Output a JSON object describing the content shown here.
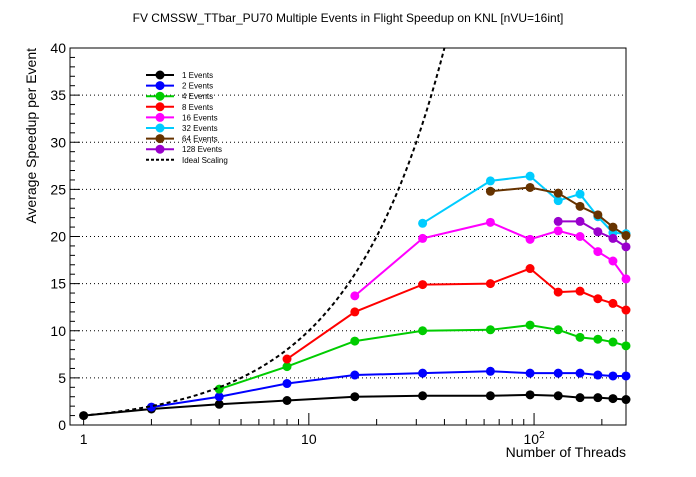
{
  "chart_data": {
    "type": "line",
    "title": "FV CMSSW_TTbar_PU70 Multiple Events in Flight Speedup on KNL [nVU=16int]",
    "xlabel": "Number of Threads",
    "ylabel": "Average Speedup per Event",
    "xscale": "log",
    "xlim": [
      0.87,
      256
    ],
    "ylim": [
      0,
      40
    ],
    "x_tick_labels": [
      {
        "value": 1,
        "label": "1",
        "sup": ""
      },
      {
        "value": 10,
        "label": "10",
        "sup": ""
      },
      {
        "value": 100,
        "label": "10",
        "sup": "2"
      }
    ],
    "y_ticks": [
      0,
      5,
      10,
      15,
      20,
      25,
      30,
      35,
      40
    ],
    "grid": "horizontal dotted",
    "legend_position": "top-left",
    "series": [
      {
        "name": "1 Events",
        "color": "#000000",
        "style": "solid-markers",
        "x": [
          1,
          2,
          4,
          8,
          16,
          32,
          64,
          96,
          128,
          160,
          192,
          224,
          256
        ],
        "y": [
          1.0,
          1.7,
          2.2,
          2.6,
          3.0,
          3.1,
          3.1,
          3.2,
          3.1,
          2.9,
          2.9,
          2.8,
          2.7
        ]
      },
      {
        "name": "2 Events",
        "color": "#0000ff",
        "style": "solid-markers",
        "x": [
          2,
          4,
          8,
          16,
          32,
          64,
          96,
          128,
          160,
          192,
          224,
          256
        ],
        "y": [
          1.9,
          3.0,
          4.4,
          5.3,
          5.5,
          5.7,
          5.5,
          5.5,
          5.5,
          5.3,
          5.2,
          5.2
        ]
      },
      {
        "name": "4 Events",
        "color": "#00cc00",
        "style": "solid-markers",
        "x": [
          4,
          8,
          16,
          32,
          64,
          96,
          128,
          160,
          192,
          224,
          256
        ],
        "y": [
          3.8,
          6.2,
          8.9,
          10.0,
          10.1,
          10.6,
          10.1,
          9.3,
          9.1,
          8.8,
          8.4
        ]
      },
      {
        "name": "8 Events",
        "color": "#ff0000",
        "style": "solid-markers",
        "x": [
          8,
          16,
          32,
          64,
          96,
          128,
          160,
          192,
          224,
          256
        ],
        "y": [
          7.0,
          12.0,
          14.9,
          15.0,
          16.6,
          14.1,
          14.2,
          13.4,
          12.9,
          12.2
        ]
      },
      {
        "name": "16 Events",
        "color": "#ff00ff",
        "style": "solid-markers",
        "x": [
          16,
          32,
          64,
          96,
          128,
          160,
          192,
          224,
          256
        ],
        "y": [
          13.7,
          19.8,
          21.5,
          19.7,
          20.6,
          20.0,
          18.4,
          17.4,
          15.5
        ]
      },
      {
        "name": "32 Events",
        "color": "#00ccff",
        "style": "solid-markers",
        "x": [
          32,
          64,
          96,
          128,
          160,
          192,
          224,
          256
        ],
        "y": [
          21.4,
          25.9,
          26.4,
          23.8,
          24.5,
          22.1,
          20.4,
          20.3
        ]
      },
      {
        "name": "64 Events",
        "color": "#663300",
        "style": "solid-markers",
        "x": [
          64,
          96,
          128,
          160,
          192,
          224,
          256
        ],
        "y": [
          24.8,
          25.2,
          24.6,
          23.2,
          22.3,
          21.0,
          20.1
        ]
      },
      {
        "name": "128 Events",
        "color": "#9900cc",
        "style": "solid-markers",
        "x": [
          128,
          160,
          192,
          224,
          256
        ],
        "y": [
          21.6,
          21.6,
          20.5,
          19.8,
          18.9
        ]
      },
      {
        "name": "Ideal Scaling",
        "color": "#000000",
        "style": "dashed",
        "x": [
          1,
          40
        ],
        "y": [
          1,
          40
        ]
      }
    ]
  }
}
